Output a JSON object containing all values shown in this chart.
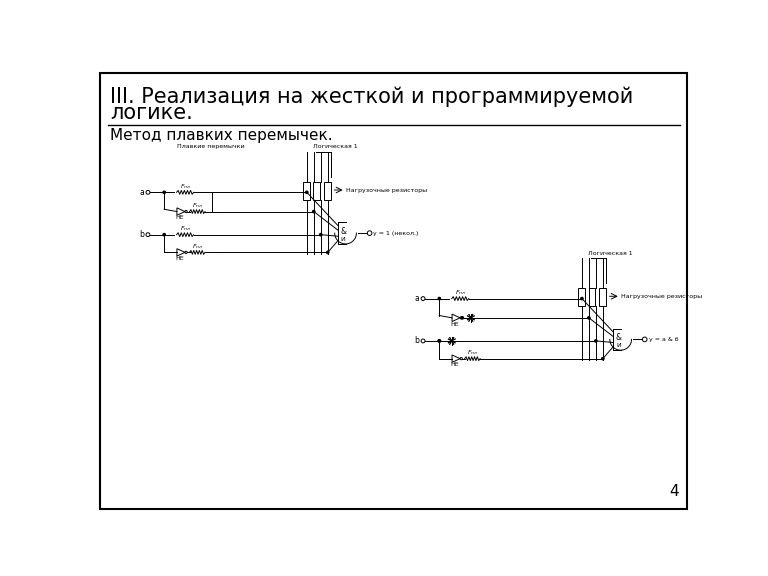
{
  "title_line1": "III. Реализация на жесткой и программируемой",
  "title_line2": "логике.",
  "subtitle": "Метод плавких перемычек.",
  "page_number": "4",
  "bg_color": "#ffffff",
  "border_color": "#000000",
  "text_color": "#000000",
  "title_fontsize": 15,
  "subtitle_fontsize": 11,
  "page_num_fontsize": 11,
  "diagram_label_fontsize": 4.5,
  "diagram_io_fontsize": 5.5
}
